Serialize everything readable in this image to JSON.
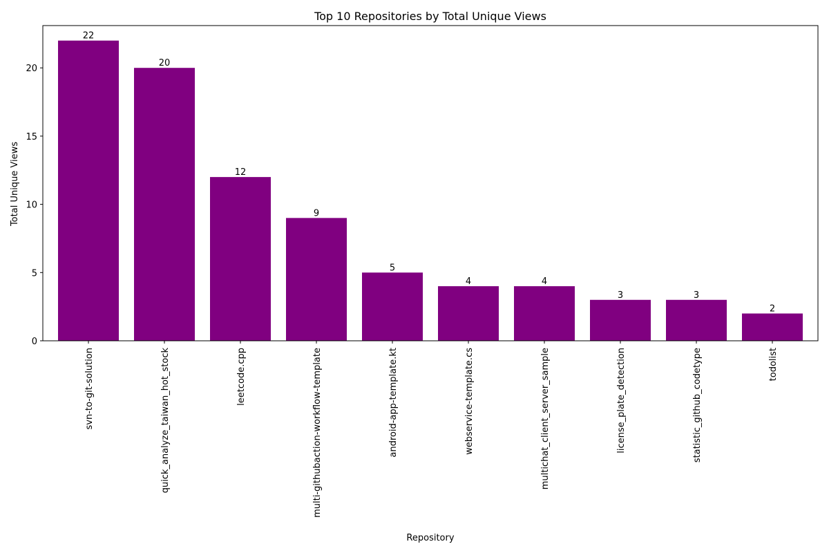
{
  "chart_data": {
    "type": "bar",
    "title": "Top 10 Repositories by Total Unique Views",
    "xlabel": "Repository",
    "ylabel": "Total Unique Views",
    "categories": [
      "svn-to-git-solution",
      "quick_analyze_taiwan_hot_stock",
      "leetcode.cpp",
      "multi-githubaction-workflow-template",
      "android-app-template.kt",
      "webservice-template.cs",
      "multichat_client_server_sample",
      "license_plate_detection",
      "statistic_github_codetype",
      "todolist"
    ],
    "values": [
      22,
      20,
      12,
      9,
      5,
      4,
      4,
      3,
      3,
      2
    ],
    "ylim": [
      0,
      23.1
    ],
    "yticks": [
      0,
      5,
      10,
      15,
      20
    ],
    "bar_color": "#800080",
    "grid": false,
    "legend": "none",
    "data_labels": true
  }
}
